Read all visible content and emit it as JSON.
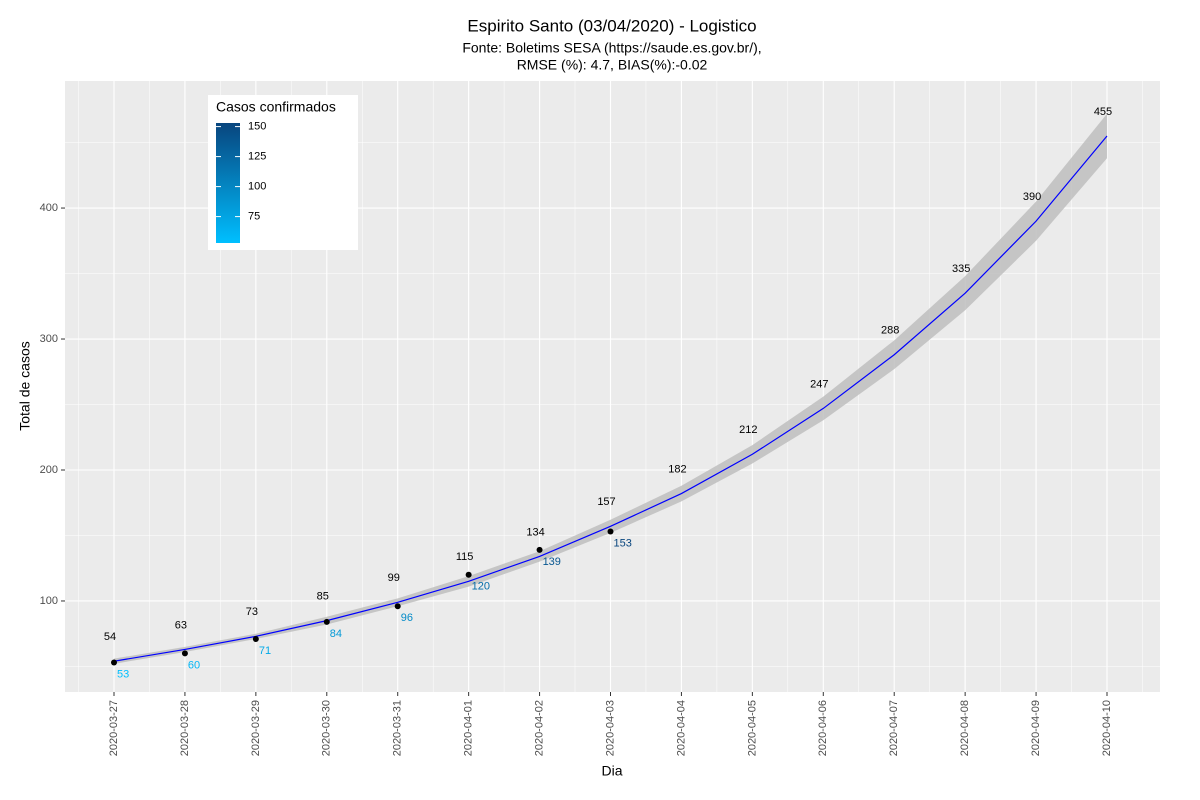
{
  "chart_data": {
    "type": "line",
    "title": "Espirito Santo (03/04/2020) - Logistico",
    "subtitle": [
      "Fonte: Boletims SESA (https://saude.es.gov.br/),",
      "RMSE (%): 4.7, BIAS(%):-0.02"
    ],
    "xlabel": "Dia",
    "ylabel": "Total de casos",
    "x": [
      "2020-03-27",
      "2020-03-28",
      "2020-03-29",
      "2020-03-30",
      "2020-03-31",
      "2020-04-01",
      "2020-04-02",
      "2020-04-03",
      "2020-04-04",
      "2020-04-05",
      "2020-04-06",
      "2020-04-07",
      "2020-04-08",
      "2020-04-09",
      "2020-04-10"
    ],
    "series": [
      {
        "color": "#0000ff",
        "values": [
          54,
          63,
          73,
          85,
          99,
          115,
          134,
          157,
          182,
          212,
          247,
          288,
          335,
          390,
          455
        ]
      },
      {
        "color": "#000000",
        "values": [
          53,
          60,
          71,
          84,
          96,
          120,
          139,
          153,
          null,
          null,
          null,
          null,
          null,
          null,
          null
        ]
      }
    ],
    "band": {
      "color": "#bebebe",
      "lower": [
        52,
        61,
        71,
        82,
        96,
        111,
        130,
        152,
        176,
        205,
        238,
        277,
        322,
        375,
        438
      ],
      "upper": [
        56,
        65,
        75,
        88,
        102,
        119,
        138,
        162,
        188,
        219,
        256,
        299,
        348,
        405,
        472
      ]
    },
    "legend": {
      "title": "Casos confirmados",
      "ticks": [
        75,
        100,
        125,
        150
      ],
      "low_color": "#00bfff",
      "high_color": "#08457e",
      "position": "top-left"
    },
    "ylim": [
      30.5,
      497
    ],
    "yticks": [
      100,
      200,
      300,
      400
    ],
    "y_minor_ticks": [
      50,
      150,
      250,
      350,
      450
    ],
    "grid": true
  }
}
